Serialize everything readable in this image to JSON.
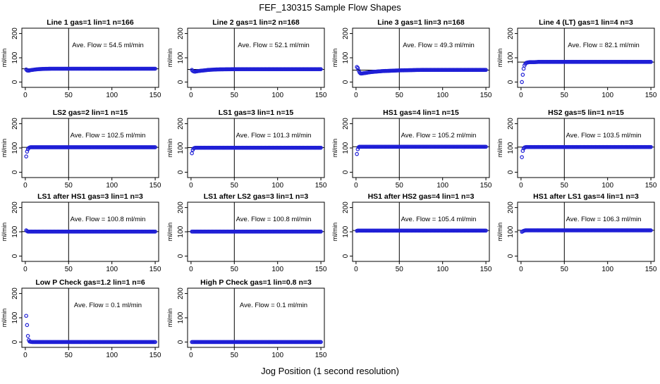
{
  "title": "FEF_130315  Sample Flow Shapes",
  "xlabel": "Jog Position (1 second resolution)",
  "chart_data": [
    {
      "type": "scatter",
      "title": "Line 1 gas=1 lin=1 n=166",
      "ylabel": "ml/min",
      "avg_text": "Ave. Flow =  54.5  ml/min",
      "avg": 54.5,
      "xlim": [
        0,
        150
      ],
      "ylim": [
        0,
        200
      ],
      "xticks": [
        0,
        50,
        100,
        150
      ],
      "yticks": [
        0,
        100,
        200
      ],
      "vline": 50,
      "hline": 54.5,
      "x": [
        1,
        2,
        3,
        4,
        5,
        6,
        8,
        10,
        12,
        15,
        20,
        30,
        50,
        75,
        100,
        125,
        150
      ],
      "y": [
        52,
        48,
        47,
        47,
        48,
        49,
        50,
        51,
        52,
        53,
        54,
        55,
        55,
        55,
        55,
        55,
        55
      ]
    },
    {
      "type": "scatter",
      "title": "Line 2 gas=1 lin=2 n=168",
      "ylabel": "ml/min",
      "avg_text": "Ave. Flow =  52.1  ml/min",
      "avg": 52.1,
      "xlim": [
        0,
        150
      ],
      "ylim": [
        0,
        200
      ],
      "xticks": [
        0,
        50,
        100,
        150
      ],
      "yticks": [
        0,
        100,
        200
      ],
      "vline": 50,
      "hline": 52.1,
      "x": [
        1,
        2,
        3,
        4,
        5,
        6,
        8,
        10,
        12,
        15,
        20,
        30,
        50,
        75,
        100,
        125,
        150
      ],
      "y": [
        50,
        46,
        44,
        43,
        43,
        44,
        45,
        46,
        47,
        48,
        50,
        52,
        53,
        53,
        53,
        53,
        53
      ]
    },
    {
      "type": "scatter",
      "title": "Line 3 gas=1 lin=3 n=168",
      "ylabel": "ml/min",
      "avg_text": "Ave. Flow =  49.3  ml/min",
      "avg": 49.3,
      "xlim": [
        0,
        150
      ],
      "ylim": [
        0,
        200
      ],
      "xticks": [
        0,
        50,
        100,
        150
      ],
      "yticks": [
        0,
        100,
        200
      ],
      "vline": 50,
      "hline": 49.3,
      "x": [
        1,
        2,
        3,
        4,
        5,
        6,
        8,
        10,
        12,
        15,
        20,
        30,
        50,
        75,
        100,
        125,
        150
      ],
      "y": [
        62,
        58,
        48,
        40,
        36,
        35,
        36,
        37,
        38,
        40,
        42,
        45,
        48,
        50,
        50,
        50,
        50
      ]
    },
    {
      "type": "scatter",
      "title": "Line 4 (LT) gas=1 lin=4 n=3",
      "ylabel": "ml/min",
      "avg_text": "Ave. Flow =  82.1  ml/min",
      "avg": 82.1,
      "xlim": [
        0,
        150
      ],
      "ylim": [
        0,
        200
      ],
      "xticks": [
        0,
        50,
        100,
        150
      ],
      "yticks": [
        0,
        100,
        200
      ],
      "vline": 50,
      "hline": 82.1,
      "x": [
        1,
        2,
        3,
        4,
        5,
        6,
        8,
        10,
        12,
        15,
        20,
        30,
        50,
        75,
        100,
        125,
        150
      ],
      "y": [
        0,
        30,
        55,
        68,
        75,
        79,
        81,
        82,
        82,
        82,
        83,
        83,
        83,
        83,
        83,
        83,
        83
      ]
    },
    {
      "type": "scatter",
      "title": "LS2 gas=2 lin=1 n=15",
      "ylabel": "ml/min",
      "avg_text": "Ave. Flow =  102.5  ml/min",
      "avg": 102.5,
      "xlim": [
        0,
        150
      ],
      "ylim": [
        0,
        200
      ],
      "xticks": [
        0,
        50,
        100,
        150
      ],
      "yticks": [
        0,
        100,
        200
      ],
      "vline": 50,
      "hline": 102.5,
      "x": [
        1,
        2,
        3,
        4,
        5,
        6,
        8,
        10,
        12,
        15,
        20,
        30,
        50,
        75,
        100,
        125,
        150
      ],
      "y": [
        65,
        85,
        95,
        100,
        102,
        103,
        103,
        103,
        103,
        103,
        103,
        103,
        103,
        103,
        103,
        103,
        103
      ]
    },
    {
      "type": "scatter",
      "title": "LS1 gas=3 lin=1 n=15",
      "ylabel": "ml/min",
      "avg_text": "Ave. Flow =  101.3  ml/min",
      "avg": 101.3,
      "xlim": [
        0,
        150
      ],
      "ylim": [
        0,
        200
      ],
      "xticks": [
        0,
        50,
        100,
        150
      ],
      "yticks": [
        0,
        100,
        200
      ],
      "vline": 50,
      "hline": 101.3,
      "x": [
        1,
        2,
        3,
        4,
        5,
        6,
        8,
        10,
        12,
        15,
        20,
        30,
        50,
        75,
        100,
        125,
        150
      ],
      "y": [
        78,
        92,
        98,
        100,
        101,
        101,
        101,
        101,
        101,
        101,
        101,
        101,
        101,
        101,
        101,
        101,
        101
      ]
    },
    {
      "type": "scatter",
      "title": "HS1 gas=4 lin=1 n=15",
      "ylabel": "ml/min",
      "avg_text": "Ave. Flow =  105.2  ml/min",
      "avg": 105.2,
      "xlim": [
        0,
        150
      ],
      "ylim": [
        0,
        200
      ],
      "xticks": [
        0,
        50,
        100,
        150
      ],
      "yticks": [
        0,
        100,
        200
      ],
      "vline": 50,
      "hline": 105.2,
      "x": [
        1,
        2,
        3,
        4,
        5,
        6,
        8,
        10,
        12,
        15,
        20,
        30,
        50,
        75,
        100,
        125,
        150
      ],
      "y": [
        75,
        95,
        103,
        105,
        105,
        105,
        105,
        105,
        105,
        105,
        105,
        105,
        105,
        105,
        105,
        105,
        105
      ]
    },
    {
      "type": "scatter",
      "title": "HS2 gas=5 lin=1 n=15",
      "ylabel": "ml/min",
      "avg_text": "Ave. Flow =  103.5  ml/min",
      "avg": 103.5,
      "xlim": [
        0,
        150
      ],
      "ylim": [
        0,
        200
      ],
      "xticks": [
        0,
        50,
        100,
        150
      ],
      "yticks": [
        0,
        100,
        200
      ],
      "vline": 50,
      "hline": 103.5,
      "x": [
        1,
        2,
        3,
        4,
        5,
        6,
        8,
        10,
        12,
        15,
        20,
        30,
        50,
        75,
        100,
        125,
        150
      ],
      "y": [
        62,
        88,
        98,
        102,
        103,
        104,
        104,
        104,
        104,
        104,
        104,
        104,
        104,
        104,
        104,
        104,
        104
      ]
    },
    {
      "type": "scatter",
      "title": "LS1 after HS1 gas=3 lin=1 n=3",
      "ylabel": "ml/min",
      "avg_text": "Ave. Flow =  100.8  ml/min",
      "avg": 100.8,
      "xlim": [
        0,
        150
      ],
      "ylim": [
        0,
        200
      ],
      "xticks": [
        0,
        50,
        100,
        150
      ],
      "yticks": [
        0,
        100,
        200
      ],
      "vline": 50,
      "hline": 100.8,
      "x": [
        1,
        2,
        3,
        4,
        5,
        6,
        8,
        10,
        12,
        15,
        20,
        30,
        50,
        75,
        100,
        125,
        150
      ],
      "y": [
        106,
        103,
        101,
        101,
        101,
        101,
        101,
        101,
        101,
        101,
        101,
        101,
        101,
        101,
        101,
        101,
        101
      ]
    },
    {
      "type": "scatter",
      "title": "LS1 after LS2 gas=3 lin=1 n=3",
      "ylabel": "ml/min",
      "avg_text": "Ave. Flow =  100.8  ml/min",
      "avg": 100.8,
      "xlim": [
        0,
        150
      ],
      "ylim": [
        0,
        200
      ],
      "xticks": [
        0,
        50,
        100,
        150
      ],
      "yticks": [
        0,
        100,
        200
      ],
      "vline": 50,
      "hline": 100.8,
      "x": [
        1,
        2,
        3,
        4,
        5,
        6,
        8,
        10,
        12,
        15,
        20,
        30,
        50,
        75,
        100,
        125,
        150
      ],
      "y": [
        101,
        101,
        101,
        101,
        101,
        101,
        101,
        101,
        101,
        101,
        101,
        101,
        101,
        101,
        101,
        101,
        101
      ]
    },
    {
      "type": "scatter",
      "title": "HS1 after HS2 gas=4 lin=1 n=3",
      "ylabel": "ml/min",
      "avg_text": "Ave. Flow =  105.4  ml/min",
      "avg": 105.4,
      "xlim": [
        0,
        150
      ],
      "ylim": [
        0,
        200
      ],
      "xticks": [
        0,
        50,
        100,
        150
      ],
      "yticks": [
        0,
        100,
        200
      ],
      "vline": 50,
      "hline": 105.4,
      "x": [
        1,
        2,
        3,
        4,
        5,
        6,
        8,
        10,
        12,
        15,
        20,
        30,
        50,
        75,
        100,
        125,
        150
      ],
      "y": [
        104,
        105,
        105,
        105,
        105,
        105,
        105,
        105,
        105,
        105,
        105,
        105,
        105,
        105,
        105,
        105,
        105
      ]
    },
    {
      "type": "scatter",
      "title": "HS1 after LS1 gas=4 lin=1 n=3",
      "ylabel": "ml/min",
      "avg_text": "Ave. Flow =  106.3  ml/min",
      "avg": 106.3,
      "xlim": [
        0,
        150
      ],
      "ylim": [
        0,
        200
      ],
      "xticks": [
        0,
        50,
        100,
        150
      ],
      "yticks": [
        0,
        100,
        200
      ],
      "vline": 50,
      "hline": 106.3,
      "x": [
        1,
        2,
        3,
        4,
        5,
        6,
        8,
        10,
        12,
        15,
        20,
        30,
        50,
        75,
        100,
        125,
        150
      ],
      "y": [
        100,
        102,
        104,
        105,
        106,
        106,
        106,
        106,
        106,
        106,
        106,
        106,
        106,
        106,
        106,
        106,
        106
      ]
    },
    {
      "type": "scatter",
      "title": "Low P Check gas=1.2 lin=1 n=6",
      "ylabel": "ml/min",
      "avg_text": "Ave. Flow =  0.1  ml/min",
      "avg": 0.1,
      "xlim": [
        0,
        150
      ],
      "ylim": [
        0,
        200
      ],
      "xticks": [
        0,
        50,
        100,
        150
      ],
      "yticks": [
        0,
        100,
        200
      ],
      "vline": 50,
      "hline": null,
      "x": [
        1,
        2,
        3,
        4,
        5,
        6,
        8,
        10,
        12,
        15,
        20,
        30,
        50,
        75,
        100,
        125,
        150
      ],
      "y": [
        108,
        70,
        25,
        8,
        2,
        1,
        0,
        0,
        0,
        0,
        0,
        0,
        0,
        0,
        0,
        0,
        0
      ]
    },
    {
      "type": "scatter",
      "title": "High P Check gas=1 lin=0.8 n=3",
      "ylabel": "ml/min",
      "avg_text": "Ave. Flow =  0.1  ml/min",
      "avg": 0.1,
      "xlim": [
        0,
        150
      ],
      "ylim": [
        0,
        200
      ],
      "xticks": [
        0,
        50,
        100,
        150
      ],
      "yticks": [
        0,
        100,
        200
      ],
      "vline": 50,
      "hline": null,
      "x": [
        1,
        2,
        3,
        4,
        5,
        6,
        8,
        10,
        12,
        15,
        20,
        30,
        50,
        75,
        100,
        125,
        150
      ],
      "y": [
        0,
        0,
        0,
        0,
        0,
        0,
        0,
        0,
        0,
        0,
        0,
        0,
        0,
        0,
        0,
        0,
        0
      ]
    }
  ],
  "colors": {
    "points": "#1f1fd6",
    "axes": "#000000",
    "lines": "#000000",
    "background": "#ffffff"
  }
}
